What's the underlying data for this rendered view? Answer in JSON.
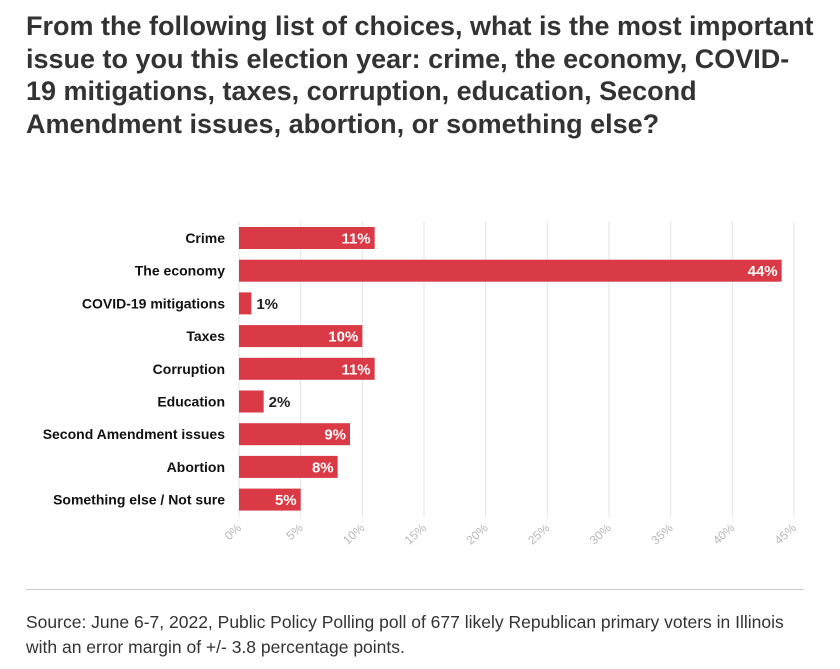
{
  "chart_data": {
    "type": "bar",
    "orientation": "horizontal",
    "title": "From the following list of choices, what is the most important issue to you this election year: crime, the economy, COVID-19 mitigations, taxes, corruption, education, Second Amendment issues, abortion, or something else?",
    "categories": [
      "Crime",
      "The economy",
      "COVID-19 mitigations",
      "Taxes",
      "Corruption",
      "Education",
      "Second Amendment issues",
      "Abortion",
      "Something else / Not sure"
    ],
    "values": [
      11,
      44,
      1,
      10,
      11,
      2,
      9,
      8,
      5
    ],
    "value_labels": [
      "11%",
      "44%",
      "1%",
      "10%",
      "11%",
      "2%",
      "9%",
      "8%",
      "5%"
    ],
    "xlim": [
      0,
      45
    ],
    "ticks": [
      0,
      5,
      10,
      15,
      20,
      25,
      30,
      35,
      40,
      45
    ],
    "tick_labels": [
      "0%",
      "5%",
      "10%",
      "15%",
      "20%",
      "25%",
      "30%",
      "35%",
      "40%",
      "45%"
    ],
    "xlabel": "",
    "ylabel": "",
    "grid": true,
    "colors": {
      "bar": "#d93a46"
    }
  },
  "source": "Source: June 6-7, 2022, Public Policy Polling poll of 677 likely Republican primary voters in Illinois with an error margin of +/- 3.8 percentage points."
}
